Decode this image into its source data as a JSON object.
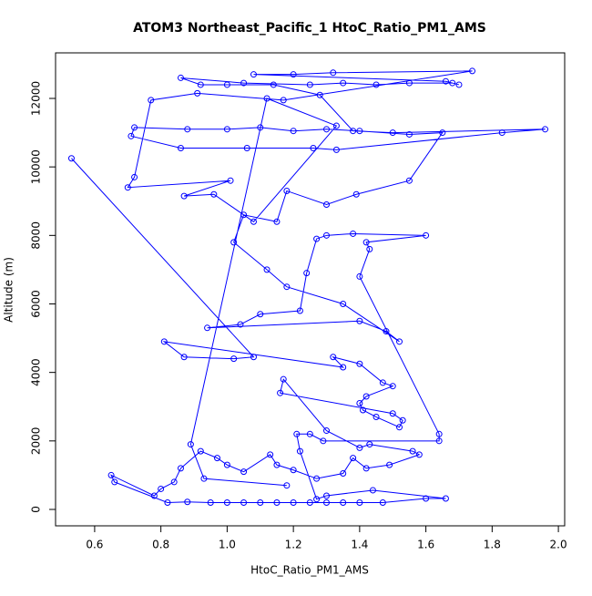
{
  "chart_data": {
    "type": "line",
    "title": "ATOM3 Northeast_Pacific_1 HtoC_Ratio_PM1_AMS",
    "x_label": "HtoC_Ratio_PM1_AMS",
    "y_label": "Altitude (m)",
    "color": "#0000ff",
    "markers": true,
    "xlim": [
      0.482,
      2.019
    ],
    "ylim": [
      -479,
      13330
    ],
    "xticks": [
      0.6,
      0.8,
      {
        "value": 1.0,
        "label": "1.0"
      },
      1.2,
      1.4,
      1.6,
      1.8,
      {
        "value": 2.0,
        "label": "2.0"
      }
    ],
    "yticks": [
      0,
      2000,
      4000,
      6000,
      8000,
      10000,
      12000
    ],
    "x": [
      0.53,
      1.08,
      1.02,
      0.87,
      0.81,
      1.35,
      1.32,
      1.4,
      1.47,
      1.5,
      1.42,
      1.4,
      1.41,
      1.45,
      1.52,
      1.53,
      1.5,
      1.16,
      1.17,
      1.3,
      1.4,
      1.43,
      1.56,
      1.58,
      1.49,
      1.42,
      1.38,
      1.35,
      1.27,
      1.2,
      1.15,
      1.13,
      1.05,
      1.0,
      0.97,
      0.92,
      0.86,
      0.84,
      0.8,
      0.78,
      0.65,
      0.66,
      0.82,
      0.88,
      0.95,
      1.0,
      1.05,
      1.1,
      1.15,
      1.2,
      1.25,
      1.3,
      1.35,
      1.4,
      1.47,
      1.6,
      1.66,
      1.44,
      1.3,
      1.27,
      1.22,
      1.21,
      1.25,
      1.29,
      1.64,
      1.64,
      1.4,
      1.43,
      1.42,
      1.6,
      1.38,
      1.3,
      1.27,
      1.24,
      1.22,
      1.1,
      1.04,
      0.94,
      1.4,
      1.48,
      1.52,
      1.35,
      1.18,
      1.12,
      1.02,
      1.05,
      1.15,
      1.18,
      1.3,
      1.39,
      1.55,
      1.65,
      1.55,
      1.4,
      1.3,
      1.2,
      1.1,
      1.0,
      0.88,
      0.72,
      0.71,
      0.86,
      1.06,
      1.26,
      1.33,
      1.83,
      1.96,
      1.5,
      1.38,
      1.28,
      1.14,
      1.0,
      0.92,
      0.86,
      1.05,
      1.25,
      1.35,
      1.45,
      1.55,
      1.68,
      1.7,
      1.66,
      1.08,
      1.2,
      1.32,
      1.74,
      1.17,
      0.91,
      0.77,
      0.72,
      0.7,
      1.01,
      0.87,
      0.96,
      1.08,
      1.33,
      1.12,
      0.89,
      0.93,
      1.18
    ],
    "values": [
      10250,
      4450,
      4400,
      4450,
      4900,
      4150,
      4450,
      4250,
      3700,
      3600,
      3300,
      3100,
      2900,
      2700,
      2400,
      2600,
      2800,
      3400,
      3800,
      2300,
      1800,
      1900,
      1700,
      1600,
      1300,
      1200,
      1500,
      1050,
      900,
      1150,
      1300,
      1600,
      1100,
      1300,
      1500,
      1700,
      1200,
      800,
      600,
      400,
      1000,
      800,
      200,
      220,
      200,
      200,
      200,
      200,
      200,
      200,
      200,
      200,
      200,
      200,
      200,
      320,
      320,
      560,
      400,
      300,
      1700,
      2200,
      2200,
      2000,
      2000,
      2200,
      6800,
      7600,
      7800,
      8000,
      8050,
      8000,
      7900,
      6900,
      5800,
      5700,
      5400,
      5300,
      5500,
      5200,
      4900,
      6000,
      6500,
      7000,
      7800,
      8600,
      8400,
      9300,
      8900,
      9200,
      9600,
      11000,
      10950,
      11050,
      11100,
      11050,
      11150,
      11100,
      11100,
      11150,
      10900,
      10550,
      10550,
      10550,
      10500,
      11000,
      11100,
      11000,
      11050,
      12100,
      12400,
      12400,
      12400,
      12600,
      12450,
      12400,
      12450,
      12400,
      12450,
      12450,
      12400,
      12500,
      12700,
      12700,
      12750,
      12800,
      11950,
      12150,
      11950,
      9700,
      9400,
      9600,
      9150,
      9200,
      8400,
      11200,
      12000,
      1900,
      900,
      700
    ]
  }
}
